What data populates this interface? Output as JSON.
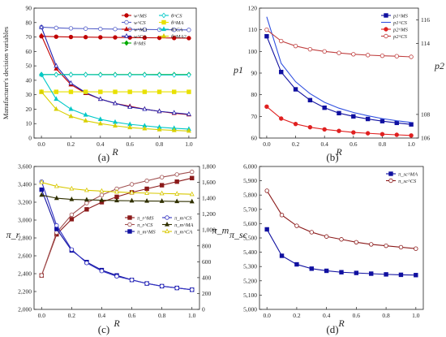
{
  "chart_data": [
    {
      "panel": "(a)",
      "type": "line",
      "x": [
        0,
        0.1,
        0.2,
        0.3,
        0.4,
        0.5,
        0.6,
        0.7,
        0.8,
        0.9,
        1.0
      ],
      "xlim": [
        -0.05,
        1.05
      ],
      "ylim": [
        0,
        90
      ],
      "xticks": [
        "0.0",
        "0.2",
        "0.4",
        "0.6",
        "0.8",
        "1.0"
      ],
      "yticks": [
        "0",
        "10",
        "20",
        "30",
        "40",
        "50",
        "60",
        "70",
        "80",
        "90"
      ],
      "xlabel": "R",
      "ylabel": "Manufacturer's decision variables",
      "legend": "top-right",
      "series": [
        {
          "name": "w^MS",
          "color": "#c00000",
          "marker": "circle",
          "values": [
            70.5,
            70.2,
            70.0,
            69.9,
            69.8,
            69.7,
            69.6,
            69.5,
            69.4,
            69.3,
            69.2
          ]
        },
        {
          "name": "w^CS",
          "color": "#5560c9",
          "marker": "circle-open",
          "values": [
            76.8,
            76.3,
            76.0,
            75.8,
            75.6,
            75.5,
            75.3,
            75.2,
            75.1,
            75.0,
            74.9
          ]
        },
        {
          "name": "w^MA",
          "color": "#c00000",
          "marker": "triangle",
          "values": [
            71.0,
            48.0,
            37.0,
            31.0,
            27.0,
            24.0,
            22.0,
            20.0,
            18.5,
            17.2,
            16.2
          ]
        },
        {
          "name": "w^CA",
          "color": "#2020b0",
          "marker": "triangle-open",
          "values": [
            76.8,
            50.0,
            38.0,
            31.5,
            27.0,
            24.0,
            21.5,
            20.0,
            18.5,
            17.5,
            16.5
          ]
        },
        {
          "name": "θ^MS",
          "color": "#00aa00",
          "marker": "diamond",
          "values": [
            44.0,
            44.0,
            44.0,
            44.0,
            44.0,
            44.0,
            44.0,
            44.0,
            44.0,
            44.0,
            44.0
          ]
        },
        {
          "name": "θ^CS",
          "color": "#00c8c8",
          "marker": "diamond-open",
          "values": [
            44.0,
            43.9,
            43.9,
            43.9,
            43.8,
            43.8,
            43.8,
            43.8,
            43.7,
            43.7,
            43.7
          ]
        },
        {
          "name": "θ^MA",
          "color": "#e8e000",
          "marker": "square",
          "values": [
            32.0,
            32.0,
            32.0,
            32.0,
            32.0,
            32.0,
            32.0,
            32.0,
            32.0,
            32.0,
            32.0
          ]
        },
        {
          "name": "θ^CA",
          "color": "#00c8c8",
          "marker": "triangle",
          "values": [
            44.0,
            27.0,
            20.0,
            16.0,
            13.0,
            11.0,
            9.5,
            8.5,
            7.5,
            6.8,
            6.2
          ]
        },
        {
          "name": "θ^MA2",
          "color": "#d8d000",
          "marker": "triangle",
          "values": [
            32.0,
            20.0,
            15.0,
            12.0,
            10.0,
            8.5,
            7.3,
            6.5,
            5.8,
            5.3,
            4.9
          ]
        }
      ]
    },
    {
      "panel": "(b)",
      "type": "line",
      "x": [
        0,
        0.1,
        0.2,
        0.3,
        0.4,
        0.5,
        0.6,
        0.7,
        0.8,
        0.9,
        1.0
      ],
      "xlim": [
        -0.05,
        1.05
      ],
      "ylim": [
        60,
        120
      ],
      "y2lim": [
        106,
        117
      ],
      "xticks": [
        "0.0",
        "0.2",
        "0.4",
        "0.6",
        "0.8",
        "1.0"
      ],
      "yticks": [
        "60",
        "70",
        "80",
        "90",
        "100",
        "110",
        "120"
      ],
      "y2ticks": [
        "106",
        "108",
        "114",
        "116"
      ],
      "xlabel": "R",
      "ylabel": "p1",
      "y2label": "p2",
      "legend": "top-right",
      "series": [
        {
          "name": "p1^MS",
          "color": "#1010a0",
          "marker": "square",
          "axis": "left",
          "values": [
            107.0,
            90.5,
            82.5,
            77.5,
            74.0,
            71.5,
            70.0,
            68.8,
            67.8,
            67.0,
            66.3
          ]
        },
        {
          "name": "p1^CS",
          "color": "#3050e0",
          "marker": "none",
          "axis": "left",
          "values": [
            116.0,
            94.5,
            86.0,
            80.5,
            76.5,
            73.8,
            71.8,
            70.3,
            69.0,
            68.0,
            67.2
          ]
        },
        {
          "name": "p2^MS",
          "color": "#e02020",
          "marker": "circle",
          "axis": "left",
          "values": [
            74.5,
            69.0,
            66.5,
            65.0,
            64.0,
            63.3,
            62.6,
            62.2,
            61.8,
            61.5,
            61.2
          ]
        },
        {
          "name": "p2^CS",
          "color": "#c04040",
          "marker": "circle-open",
          "axis": "left",
          "values": [
            110.0,
            104.8,
            102.5,
            101.0,
            100.0,
            99.3,
            98.7,
            98.3,
            98.0,
            97.8,
            97.5
          ]
        }
      ]
    },
    {
      "panel": "(c)",
      "type": "line",
      "x": [
        0,
        0.1,
        0.2,
        0.3,
        0.4,
        0.5,
        0.6,
        0.7,
        0.8,
        0.9,
        1.0
      ],
      "xlim": [
        -0.05,
        1.05
      ],
      "ylim": [
        2000,
        3600
      ],
      "y2lim": [
        0,
        1800
      ],
      "xticks": [
        "0.0",
        "0.2",
        "0.4",
        "0.6",
        "0.8",
        "1.0"
      ],
      "yticks": [
        "2,000",
        "2,200",
        "2,400",
        "2,600",
        "2,800",
        "3,000",
        "3,200",
        "3,400",
        "3,600"
      ],
      "y2ticks": [
        "0",
        "200",
        "400",
        "600",
        "800",
        "1,000",
        "1,200",
        "1,400",
        "1,600",
        "1,800"
      ],
      "xlabel": "R",
      "ylabel": "π_r",
      "y2label": "π_m",
      "legend": "center-right",
      "series": [
        {
          "name": "π_r^MS",
          "color": "#8b1a1a",
          "marker": "square",
          "axis": "left",
          "values": [
            2380,
            2840,
            3010,
            3120,
            3200,
            3260,
            3310,
            3350,
            3390,
            3430,
            3470
          ]
        },
        {
          "name": "π_r^CS",
          "color": "#a05050",
          "marker": "circle-open",
          "axis": "left",
          "values": [
            2380,
            2860,
            3060,
            3190,
            3280,
            3350,
            3400,
            3440,
            3480,
            3510,
            3540
          ]
        },
        {
          "name": "π_m^MS",
          "color": "#1010a0",
          "marker": "square",
          "axis": "left",
          "values": [
            3340,
            2900,
            2660,
            2530,
            2440,
            2380,
            2330,
            2290,
            2260,
            2240,
            2220
          ]
        },
        {
          "name": "π_m^CS",
          "color": "#3030c0",
          "marker": "circle-open",
          "axis": "left",
          "values": [
            3430,
            2940,
            2670,
            2520,
            2430,
            2370,
            2330,
            2290,
            2260,
            2240,
            2220
          ]
        },
        {
          "name": "π_m^MA",
          "color": "#303000",
          "marker": "triangle",
          "axis": "right",
          "values": [
            1440,
            1400,
            1385,
            1380,
            1375,
            1370,
            1368,
            1365,
            1363,
            1360,
            1358
          ]
        },
        {
          "name": "π_m^CA",
          "color": "#d8c800",
          "marker": "triangle-open",
          "axis": "right",
          "values": [
            1600,
            1550,
            1520,
            1500,
            1490,
            1480,
            1470,
            1465,
            1460,
            1455,
            1450
          ]
        }
      ]
    },
    {
      "panel": "(d)",
      "type": "line",
      "x": [
        0,
        0.1,
        0.2,
        0.3,
        0.4,
        0.5,
        0.6,
        0.7,
        0.8,
        0.9,
        1.0
      ],
      "xlim": [
        -0.05,
        1.05
      ],
      "ylim": [
        5000,
        6000
      ],
      "xticks": [
        "0.0",
        "0.2",
        "0.4",
        "0.6",
        "0.8",
        "1.0"
      ],
      "yticks": [
        "5,000",
        "5,100",
        "5,200",
        "5,300",
        "5,400",
        "5,500",
        "5,600",
        "5,700",
        "5,800",
        "5,900",
        "6,000"
      ],
      "xlabel": "R",
      "ylabel": "π_sc",
      "legend": "top-right",
      "series": [
        {
          "name": "π_sc^MA",
          "color": "#1010a0",
          "marker": "square",
          "values": [
            5560,
            5375,
            5315,
            5285,
            5270,
            5260,
            5255,
            5250,
            5245,
            5242,
            5240
          ]
        },
        {
          "name": "π_sc^CS",
          "color": "#8b1a1a",
          "marker": "circle-open",
          "values": [
            5830,
            5660,
            5585,
            5540,
            5510,
            5490,
            5470,
            5455,
            5445,
            5435,
            5425
          ]
        }
      ]
    }
  ]
}
